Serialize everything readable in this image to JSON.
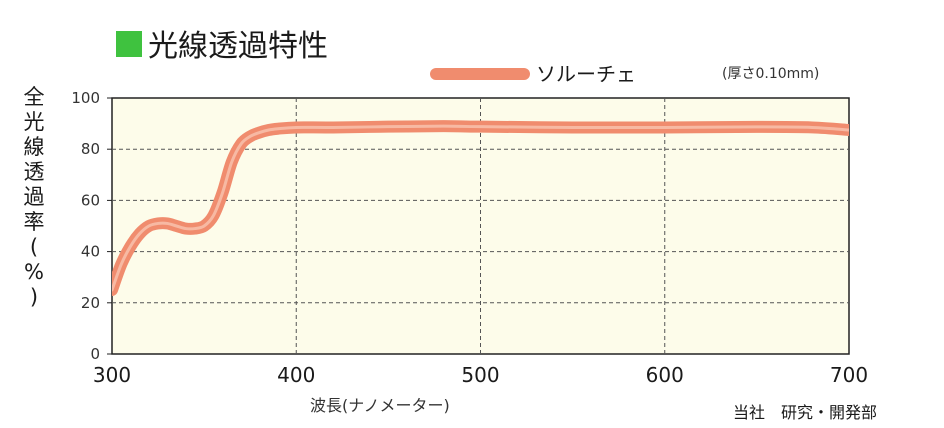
{
  "header": {
    "title": "光線透過特性",
    "title_marker_color": "#3fc23f"
  },
  "legend": {
    "series_label": "ソルーチェ",
    "swatch_color": "#f08c6e",
    "note": "(厚さ0.10mm)"
  },
  "footer": {
    "credit": "当社　研究・開発部"
  },
  "colors": {
    "plot_background": "#fdfcea",
    "line": "#f08c6e",
    "grid": "#555555"
  },
  "chart_data": {
    "type": "line",
    "title": "光線透過特性",
    "xlabel": "波長(ナノメーター)",
    "ylabel": "全光線透過率(%)",
    "xlim": [
      300,
      700
    ],
    "ylim": [
      0,
      100
    ],
    "x_ticks": [
      300,
      400,
      500,
      600,
      700
    ],
    "y_ticks": [
      0,
      20,
      40,
      60,
      80,
      100
    ],
    "grid": true,
    "legend_position": "top-right",
    "series": [
      {
        "name": "ソルーチェ",
        "note": "(厚さ0.10mm)",
        "color": "#f08c6e",
        "x": [
          300,
          305,
          310,
          315,
          320,
          325,
          330,
          335,
          340,
          345,
          350,
          355,
          360,
          365,
          370,
          375,
          380,
          385,
          390,
          400,
          420,
          450,
          480,
          500,
          550,
          600,
          650,
          680,
          700
        ],
        "y": [
          25,
          35,
          42,
          47,
          50,
          51,
          51,
          50,
          49,
          49,
          50,
          54,
          63,
          75,
          82,
          85,
          86.5,
          87.5,
          88,
          88.5,
          88.5,
          88.8,
          89,
          88.8,
          88.5,
          88.5,
          88.7,
          88.5,
          87.5
        ]
      }
    ]
  }
}
